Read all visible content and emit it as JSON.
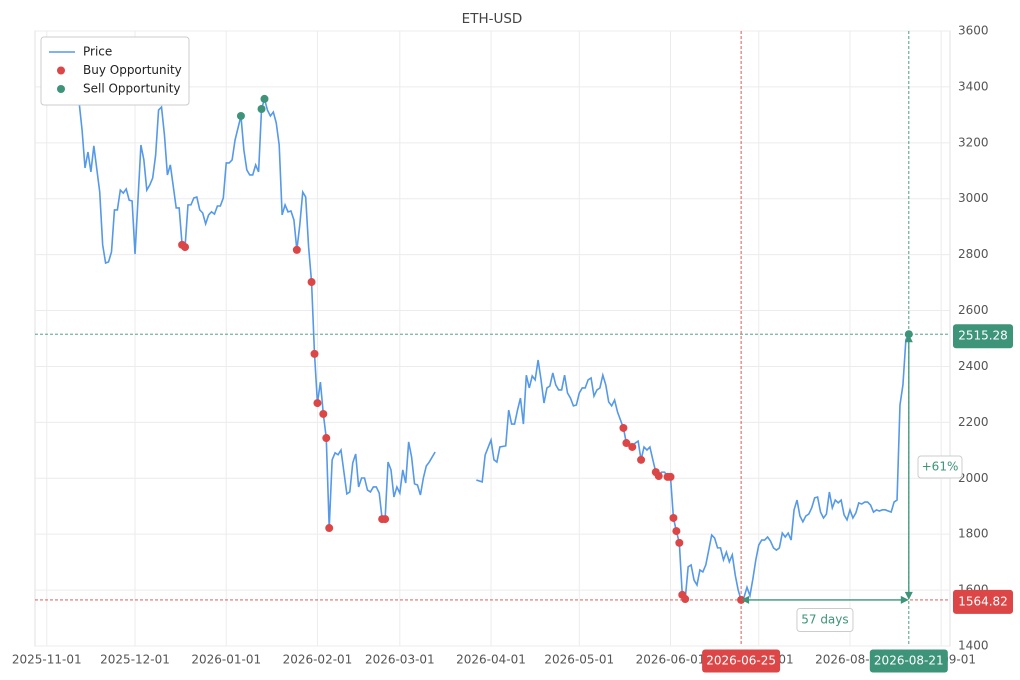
{
  "chart_data": {
    "type": "line",
    "title": "ETH-USD",
    "xlim": [
      "2025-10-28",
      "2026-09-04"
    ],
    "xticks": [
      "2025-11-01",
      "2025-12-01",
      "2026-01-01",
      "2026-02-01",
      "2026-03-01",
      "2026-04-01",
      "2026-05-01",
      "2026-06-01",
      "2026-07-01",
      "2026-08-01",
      "2026-09-01"
    ],
    "ylim": [
      1400,
      3600
    ],
    "yticks": [
      1400,
      1600,
      1800,
      2000,
      2200,
      2400,
      2600,
      2800,
      3000,
      3200,
      3400,
      3600
    ],
    "grid": true,
    "legend": "upper-left",
    "series": [
      {
        "name": "Price",
        "type": "line",
        "color": "#5599e8",
        "x": [
          "2025-11-11",
          "2025-11-13",
          "2025-11-14",
          "2025-11-15",
          "2025-11-16",
          "2025-11-17",
          "2025-11-19",
          "2025-11-20",
          "2025-11-21",
          "2025-11-22",
          "2025-11-23",
          "2025-11-24",
          "2025-11-25",
          "2025-11-26",
          "2025-11-27",
          "2025-11-28",
          "2025-11-29",
          "2025-11-30",
          "2025-12-01",
          "2025-12-02",
          "2025-12-03",
          "2025-12-04",
          "2025-12-05",
          "2025-12-06",
          "2025-12-07",
          "2025-12-08",
          "2025-12-09",
          "2025-12-10",
          "2025-12-11",
          "2025-12-12",
          "2025-12-13",
          "2025-12-15",
          "2025-12-16",
          "2025-12-17",
          "2025-12-18",
          "2025-12-19",
          "2025-12-20",
          "2025-12-21",
          "2025-12-22",
          "2025-12-23",
          "2025-12-24",
          "2025-12-25",
          "2025-12-26",
          "2025-12-27",
          "2025-12-28",
          "2025-12-29",
          "2025-12-30",
          "2025-12-31",
          "2026-01-01",
          "2026-01-02",
          "2026-01-03",
          "2026-01-04",
          "2026-01-06",
          "2026-01-07",
          "2026-01-08",
          "2026-01-09",
          "2026-01-10",
          "2026-01-11",
          "2026-01-12",
          "2026-01-13",
          "2026-01-14",
          "2026-01-15",
          "2026-01-16",
          "2026-01-17",
          "2026-01-18",
          "2026-01-19",
          "2026-01-20",
          "2026-01-21",
          "2026-01-22",
          "2026-01-23",
          "2026-01-24",
          "2026-01-25",
          "2026-01-26",
          "2026-01-27",
          "2026-01-28",
          "2026-01-29",
          "2026-01-30",
          "2026-01-31",
          "2026-02-01",
          "2026-02-02",
          "2026-02-03",
          "2026-02-04",
          "2026-02-05",
          "2026-02-06",
          "2026-02-07",
          "2026-02-08",
          "2026-02-09",
          "2026-02-11",
          "2026-02-12",
          "2026-02-13",
          "2026-02-14",
          "2026-02-15",
          "2026-02-16",
          "2026-02-17",
          "2026-02-18",
          "2026-02-19",
          "2026-02-20",
          "2026-02-21",
          "2026-02-22",
          "2026-02-23",
          "2026-02-24",
          "2026-02-25",
          "2026-02-26",
          "2026-02-27",
          "2026-02-28",
          "2026-03-01",
          "2026-03-02",
          "2026-03-03",
          "2026-03-04",
          "2026-03-05",
          "2026-03-06",
          "2026-03-07",
          "2026-03-08",
          "2026-03-09",
          "2026-03-10",
          "2026-03-11",
          "2026-03-13",
          "2026-03-20",
          "2026-03-27",
          "2026-03-29",
          "2026-03-30",
          "2026-04-01",
          "2026-04-02",
          "2026-04-03",
          "2026-04-04",
          "2026-04-06",
          "2026-04-07",
          "2026-04-08",
          "2026-04-09",
          "2026-04-10",
          "2026-04-11",
          "2026-04-12",
          "2026-04-13",
          "2026-04-14",
          "2026-04-15",
          "2026-04-16",
          "2026-04-17",
          "2026-04-18",
          "2026-04-19",
          "2026-04-20",
          "2026-04-21",
          "2026-04-22",
          "2026-04-23",
          "2026-04-24",
          "2026-04-25",
          "2026-04-26",
          "2026-04-27",
          "2026-04-28",
          "2026-04-29",
          "2026-04-30",
          "2026-05-01",
          "2026-05-02",
          "2026-05-03",
          "2026-05-04",
          "2026-05-05",
          "2026-05-06",
          "2026-05-07",
          "2026-05-08",
          "2026-05-09",
          "2026-05-10",
          "2026-05-11",
          "2026-05-12",
          "2026-05-13",
          "2026-05-14",
          "2026-05-16",
          "2026-05-17",
          "2026-05-19",
          "2026-05-20",
          "2026-05-21",
          "2026-05-22",
          "2026-05-23",
          "2026-05-24",
          "2026-05-25",
          "2026-05-26",
          "2026-05-27",
          "2026-05-28",
          "2026-05-29",
          "2026-05-30",
          "2026-05-31",
          "2026-06-01",
          "2026-06-02",
          "2026-06-03",
          "2026-06-04",
          "2026-06-05",
          "2026-06-06",
          "2026-06-07",
          "2026-06-08",
          "2026-06-09",
          "2026-06-10",
          "2026-06-11",
          "2026-06-12",
          "2026-06-13",
          "2026-06-14",
          "2026-06-15",
          "2026-06-16",
          "2026-06-17",
          "2026-06-18",
          "2026-06-19",
          "2026-06-20",
          "2026-06-21",
          "2026-06-22",
          "2026-06-23",
          "2026-06-24",
          "2026-06-25",
          "2026-06-26",
          "2026-06-27",
          "2026-06-28",
          "2026-06-29",
          "2026-06-30",
          "2026-07-01",
          "2026-07-02",
          "2026-07-03",
          "2026-07-04",
          "2026-07-05",
          "2026-07-06",
          "2026-07-07",
          "2026-07-08",
          "2026-07-09",
          "2026-07-10",
          "2026-07-11",
          "2026-07-12",
          "2026-07-13",
          "2026-07-14",
          "2026-07-15",
          "2026-07-16",
          "2026-07-17",
          "2026-07-18",
          "2026-07-19",
          "2026-07-20",
          "2026-07-21",
          "2026-07-22",
          "2026-07-23",
          "2026-07-24",
          "2026-07-25",
          "2026-07-26",
          "2026-07-27",
          "2026-07-28",
          "2026-07-29",
          "2026-07-30",
          "2026-07-31",
          "2026-08-01",
          "2026-08-02",
          "2026-08-03",
          "2026-08-04",
          "2026-08-05",
          "2026-08-06",
          "2026-08-07",
          "2026-08-08",
          "2026-08-09",
          "2026-08-10",
          "2026-08-11",
          "2026-08-12",
          "2026-08-13",
          "2026-08-14",
          "2026-08-15",
          "2026-08-16",
          "2026-08-17",
          "2026-08-18",
          "2026-08-19",
          "2026-08-20",
          "2026-08-21"
        ],
        "values": [
          3443,
          3246,
          3110,
          3167,
          3096,
          3189,
          3024,
          2835,
          2770,
          2774,
          2810,
          2960,
          2960,
          3031,
          3020,
          3035,
          2995,
          2992,
          2802,
          2995,
          3192,
          3139,
          3031,
          3049,
          3074,
          3156,
          3317,
          3328,
          3228,
          3085,
          3121,
          2967,
          2967,
          2835,
          2827,
          2978,
          2978,
          3003,
          3006,
          2960,
          2949,
          2910,
          2942,
          2953,
          2945,
          2974,
          2974,
          3003,
          3128,
          3128,
          3139,
          3210,
          3296,
          3174,
          3103,
          3085,
          3085,
          3121,
          3096,
          3321,
          3357,
          3317,
          3296,
          3310,
          3271,
          3192,
          2942,
          2978,
          2953,
          2956,
          2924,
          2817,
          2906,
          3024,
          3006,
          2827,
          2702,
          2445,
          2269,
          2344,
          2230,
          2144,
          1822,
          2066,
          2091,
          2084,
          2101,
          1944,
          1951,
          2055,
          2087,
          1969,
          2001,
          2001,
          1958,
          1951,
          1969,
          1969,
          1947,
          1854,
          1854,
          2058,
          2030,
          1933,
          1969,
          1947,
          2030,
          1983,
          2130,
          2076,
          1980,
          1976,
          1940,
          2001,
          2044,
          2058,
          2094,
          null,
          1994,
          1987,
          2083,
          2137,
          2066,
          2058,
          2112,
          2116,
          2244,
          2194,
          2194,
          2244,
          2287,
          2194,
          2369,
          2323,
          2366,
          2352,
          2423,
          2352,
          2269,
          2323,
          2330,
          2377,
          2334,
          2316,
          2316,
          2369,
          2305,
          2287,
          2259,
          2262,
          2305,
          2323,
          2323,
          2352,
          2359,
          2294,
          2316,
          2323,
          2369,
          2334,
          2273,
          2259,
          2280,
          2237,
          2180,
          2126,
          2112,
          2126,
          2133,
          2066,
          2112,
          2101,
          2112,
          2066,
          2022,
          2008,
          2022,
          2022,
          2005,
          2005,
          1858,
          1811,
          1769,
          1583,
          1568,
          1683,
          1690,
          1636,
          1618,
          1672,
          1665,
          1690,
          1743,
          1797,
          1786,
          1751,
          1751,
          1708,
          1736,
          1701,
          1726,
          1654,
          1600,
          1564.82,
          1575,
          1610,
          1580,
          1640,
          1708,
          1761,
          1779,
          1779,
          1790,
          1775,
          1751,
          1743,
          1751,
          1804,
          1790,
          1804,
          1779,
          1887,
          1922,
          1865,
          1844,
          1865,
          1872,
          1894,
          1930,
          1933,
          1879,
          1858,
          1872,
          1951,
          1894,
          1922,
          1912,
          1922,
          1869,
          1851,
          1887,
          1858,
          1876,
          1912,
          1908,
          1915,
          1915,
          1904,
          1879,
          1887,
          1883,
          1887,
          1887,
          1883,
          1879,
          1915,
          1922,
          2262,
          2334,
          2495,
          2515.28
        ]
      },
      {
        "name": "Buy Opportunity",
        "type": "scatter",
        "color": "#dc4646",
        "x": [
          "2025-12-17",
          "2025-12-18",
          "2026-01-25",
          "2026-01-30",
          "2026-01-31",
          "2026-02-01",
          "2026-02-03",
          "2026-02-04",
          "2026-02-05",
          "2026-02-23",
          "2026-02-24",
          "2026-05-16",
          "2026-05-17",
          "2026-05-19",
          "2026-05-22",
          "2026-05-27",
          "2026-05-28",
          "2026-05-31",
          "2026-06-01",
          "2026-06-02",
          "2026-06-03",
          "2026-06-04",
          "2026-06-05",
          "2026-06-06",
          "2026-06-25"
        ],
        "values": [
          2835,
          2827,
          2817,
          2702,
          2445,
          2269,
          2230,
          2144,
          1822,
          1854,
          1854,
          2180,
          2126,
          2112,
          2066,
          2022,
          2008,
          2005,
          2005,
          1858,
          1811,
          1769,
          1583,
          1568,
          1564.82
        ]
      },
      {
        "name": "Sell Opportunity",
        "type": "scatter",
        "color": "#3d9478",
        "x": [
          "2026-01-06",
          "2026-01-13",
          "2026-01-14",
          "2026-08-21"
        ],
        "values": [
          3296,
          3321,
          3357,
          2515.28
        ]
      }
    ],
    "annotations": {
      "hlines": [
        {
          "y": 2515.28,
          "color": "#3d9478"
        },
        {
          "y": 1564.82,
          "color": "#dc4646"
        }
      ],
      "vlines": [
        {
          "x": "2026-06-25",
          "color": "#dc4646"
        },
        {
          "x": "2026-08-21",
          "color": "#3d9478"
        }
      ],
      "change_label": "+61%",
      "duration_label": "57 days",
      "arrow_color": "#3d9478"
    }
  }
}
